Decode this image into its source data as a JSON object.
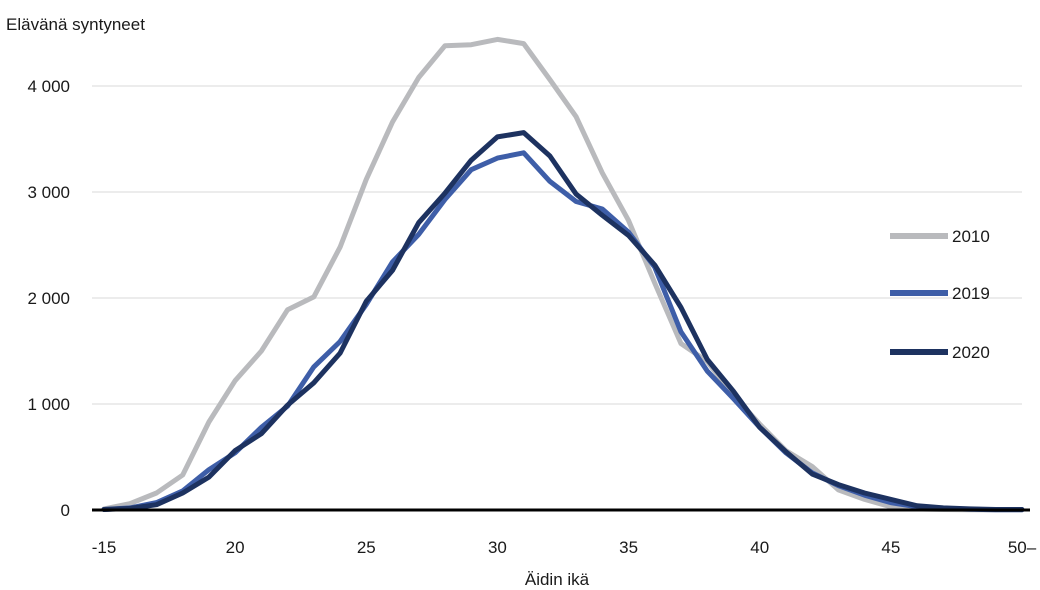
{
  "chart_data": {
    "type": "line",
    "title": "",
    "ylabel": "Elävänä syntyneet",
    "xlabel": "Äidin ikä",
    "x": [
      15,
      16,
      17,
      18,
      19,
      20,
      21,
      22,
      23,
      24,
      25,
      26,
      27,
      28,
      29,
      30,
      31,
      32,
      33,
      34,
      35,
      36,
      37,
      38,
      39,
      40,
      41,
      42,
      43,
      44,
      45,
      46,
      47,
      48,
      49,
      50
    ],
    "x_tick_values": [
      15,
      20,
      25,
      30,
      35,
      40,
      45,
      50
    ],
    "x_tick_labels": [
      "-15",
      "20",
      "25",
      "30",
      "35",
      "40",
      "45",
      "50–"
    ],
    "xlim": [
      15,
      50
    ],
    "ylim": [
      0,
      4500
    ],
    "y_tick_values": [
      0,
      1000,
      2000,
      3000,
      4000
    ],
    "y_tick_labels": [
      "0",
      "1 000",
      "2 000",
      "3 000",
      "4 000"
    ],
    "grid": "horizontal",
    "legend_position": "right",
    "series": [
      {
        "name": "2010",
        "color": "#b9babd",
        "values": [
          10,
          60,
          160,
          330,
          830,
          1220,
          1500,
          1890,
          2010,
          2480,
          3120,
          3660,
          4080,
          4380,
          4390,
          4440,
          4400,
          4060,
          3710,
          3180,
          2730,
          2140,
          1570,
          1400,
          1080,
          810,
          560,
          410,
          190,
          100,
          30,
          10,
          5,
          2,
          1,
          1
        ]
      },
      {
        "name": "2019",
        "color": "#3e5ea8",
        "values": [
          5,
          20,
          70,
          180,
          380,
          540,
          780,
          980,
          1350,
          1590,
          1940,
          2340,
          2600,
          2930,
          3210,
          3320,
          3370,
          3100,
          2910,
          2840,
          2620,
          2290,
          1680,
          1310,
          1050,
          780,
          540,
          350,
          230,
          140,
          70,
          30,
          15,
          8,
          3,
          2
        ]
      },
      {
        "name": "2020",
        "color": "#1d3260",
        "values": [
          5,
          15,
          50,
          160,
          310,
          560,
          720,
          990,
          1200,
          1480,
          1970,
          2260,
          2710,
          2990,
          3300,
          3520,
          3560,
          3340,
          2980,
          2780,
          2590,
          2310,
          1910,
          1420,
          1120,
          780,
          550,
          340,
          240,
          160,
          100,
          40,
          20,
          10,
          5,
          5
        ]
      }
    ]
  }
}
